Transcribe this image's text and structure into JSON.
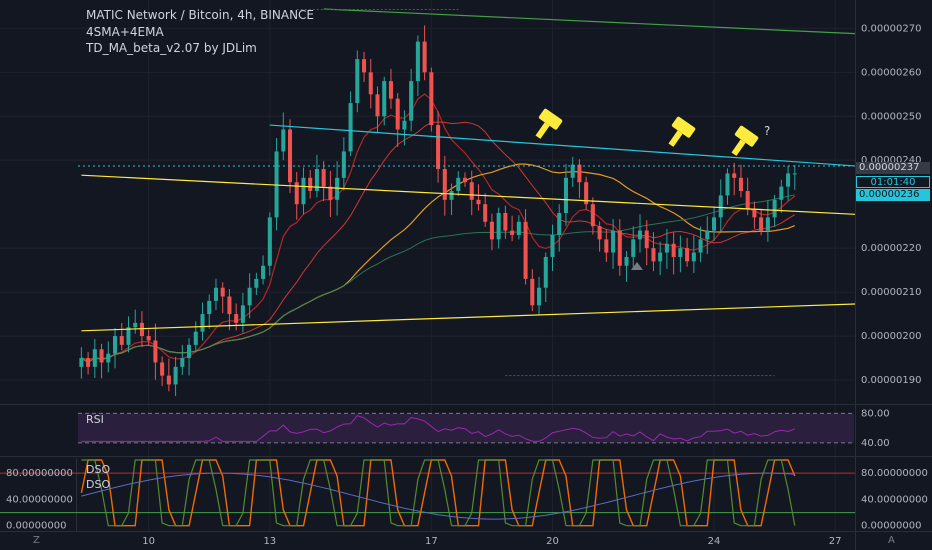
{
  "header": {
    "symbol_line": "MATIC Network / Bitcoin, 4h, BINANCE",
    "indicator_1": "4SMA+4EMA",
    "indicator_2": "TD_MA_beta_v2.07 by JDLim"
  },
  "price_tags": {
    "last_price": "0.00000237",
    "countdown": "01:01:40",
    "ma_price": "0.00000236"
  },
  "panes": {
    "rsi_label": "RSI",
    "dso_label_1": "DSO",
    "dso_label_2": "DSO"
  },
  "annotation": {
    "question_mark": "?"
  },
  "corner_left": "Z",
  "corner_right": "A",
  "colors": {
    "background": "#131722",
    "bull": "#26a69a",
    "bear": "#ef5350",
    "trendline_cyan": "#26c6da",
    "trendline_yellow": "#ffeb3b",
    "trendline_green": "#43a047",
    "ma_red": "#c62828",
    "ma_orange": "#f9a825",
    "rsi": "#9c27b0"
  },
  "chart_data": {
    "type": "candlestick",
    "main": {
      "y_ticks": [
        "0.00000270",
        "0.00000260",
        "0.00000250",
        "0.00000240",
        "0.00000220",
        "0.00000210",
        "0.00000200",
        "0.00000190"
      ],
      "y_tick_values": [
        2.7,
        2.6,
        2.5,
        2.4,
        2.2,
        2.1,
        2.0,
        1.9
      ],
      "ylim": [
        1.85,
        2.76
      ],
      "y_unit_scale": "1e-6",
      "x_ticks": [
        "10",
        "13",
        "17",
        "20",
        "24",
        "27"
      ],
      "x_tick_bars": [
        10,
        28,
        52,
        70,
        94,
        112
      ],
      "bars_total": 115,
      "candles_close": [
        1.95,
        1.93,
        1.97,
        1.94,
        1.96,
        2.0,
        1.98,
        2.02,
        2.03,
        2.0,
        1.99,
        1.94,
        1.91,
        1.89,
        1.93,
        1.95,
        1.98,
        2.01,
        2.05,
        2.08,
        2.11,
        2.09,
        2.05,
        2.03,
        2.07,
        2.11,
        2.13,
        2.16,
        2.27,
        2.42,
        2.47,
        2.35,
        2.3,
        2.36,
        2.33,
        2.38,
        2.34,
        2.31,
        2.36,
        2.42,
        2.53,
        2.63,
        2.6,
        2.55,
        2.5,
        2.58,
        2.54,
        2.47,
        2.49,
        2.58,
        2.67,
        2.6,
        2.48,
        2.38,
        2.31,
        2.33,
        2.36,
        2.35,
        2.31,
        2.3,
        2.26,
        2.22,
        2.28,
        2.24,
        2.23,
        2.26,
        2.13,
        2.07,
        2.11,
        2.18,
        2.23,
        2.28,
        2.36,
        2.39,
        2.35,
        2.3,
        2.25,
        2.22,
        2.19,
        2.24,
        2.16,
        2.18,
        2.22,
        2.24,
        2.2,
        2.17,
        2.19,
        2.21,
        2.18,
        2.2,
        2.17,
        2.19,
        2.22,
        2.24,
        2.27,
        2.32,
        2.37,
        2.36,
        2.33,
        2.29,
        2.27,
        2.24,
        2.27,
        2.31,
        2.34,
        2.37,
        2.37
      ],
      "trendlines": [
        {
          "name": "cyan-resistance",
          "color": "#26c6da",
          "from": [
            28,
            2.48
          ],
          "to": [
            115,
            2.387
          ]
        },
        {
          "name": "yellow-mid",
          "color": "#ffeb3b",
          "from": [
            0,
            2.366
          ],
          "to": [
            115,
            2.277
          ]
        },
        {
          "name": "yellow-lower",
          "color": "#ffeb3b",
          "from": [
            0,
            2.012
          ],
          "to": [
            115,
            2.073
          ]
        },
        {
          "name": "green-top",
          "color": "#43a047",
          "from": [
            36,
            2.744
          ],
          "to": [
            115,
            2.688
          ]
        }
      ],
      "hammer_markers": [
        "peak-1",
        "peak-2",
        "peak-3"
      ]
    },
    "rsi": {
      "y_ticks": [
        "80.00",
        "40.00"
      ],
      "y_tick_values": [
        80,
        40
      ],
      "ylim": [
        25,
        90
      ]
    },
    "dso": {
      "y_ticks": [
        "80.00000000",
        "40.00000000",
        "0.00000000"
      ],
      "y_tick_values": [
        80,
        40,
        0
      ],
      "ylim": [
        -5,
        100
      ]
    }
  }
}
